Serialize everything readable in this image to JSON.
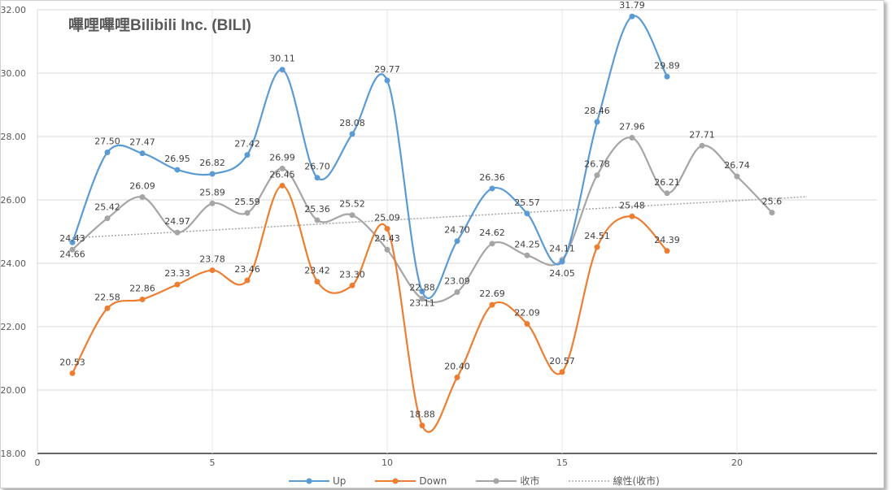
{
  "chart_data": {
    "type": "line",
    "title": "嗶哩嗶哩Bilibili Inc. (BILI)",
    "xlim": [
      0,
      24
    ],
    "ylim": [
      18,
      32
    ],
    "x_ticks": [
      0,
      5,
      10,
      15,
      20
    ],
    "y_ticks": [
      "18.00",
      "20.00",
      "22.00",
      "24.00",
      "26.00",
      "28.00",
      "30.00",
      "32.00"
    ],
    "grid": true,
    "legend": "bottom",
    "series": [
      {
        "name": "Up",
        "color": "#5B9BD5",
        "x": [
          1,
          2,
          3,
          4,
          5,
          6,
          7,
          8,
          9,
          10,
          11,
          12,
          13,
          14,
          15,
          16,
          17,
          18
        ],
        "values": [
          24.66,
          27.5,
          27.47,
          26.95,
          26.82,
          27.42,
          30.11,
          26.7,
          28.08,
          29.77,
          23.11,
          24.7,
          26.36,
          25.57,
          24.05,
          28.46,
          31.79,
          29.89
        ],
        "labels": [
          "24.66",
          "27.50",
          "27.47",
          "26.95",
          "26.82",
          "27.42",
          "30.11",
          "26.70",
          "28.08",
          "29.77",
          "23.11",
          "24.70",
          "26.36",
          "25.57",
          "24.05",
          "28.46",
          "31.79",
          "29.89"
        ]
      },
      {
        "name": "Down",
        "color": "#ED7D31",
        "x": [
          1,
          2,
          3,
          4,
          5,
          6,
          7,
          8,
          9,
          10,
          11,
          12,
          13,
          14,
          15,
          16,
          17,
          18
        ],
        "values": [
          20.53,
          22.58,
          22.86,
          23.33,
          23.78,
          23.46,
          26.45,
          23.42,
          23.3,
          25.09,
          18.88,
          20.4,
          22.69,
          22.09,
          20.57,
          24.51,
          25.48,
          24.39
        ],
        "labels": [
          "20.53",
          "22.58",
          "22.86",
          "23.33",
          "23.78",
          "23.46",
          "26.45",
          "23.42",
          "23.30",
          "25.09",
          "18.88",
          "20.40",
          "22.69",
          "22.09",
          "20.57",
          "24.51",
          "25.48",
          "24.39"
        ]
      },
      {
        "name": "收市",
        "color": "#A5A5A5",
        "x": [
          1,
          2,
          3,
          4,
          5,
          6,
          7,
          8,
          9,
          10,
          11,
          12,
          13,
          14,
          15,
          16,
          17,
          18,
          19,
          20,
          21
        ],
        "values": [
          24.43,
          25.42,
          26.09,
          24.97,
          25.89,
          25.59,
          26.99,
          25.36,
          25.52,
          24.43,
          22.88,
          23.09,
          24.62,
          24.25,
          24.11,
          26.78,
          27.96,
          26.21,
          27.71,
          26.74,
          25.6
        ],
        "labels": [
          "24.43",
          "25.42",
          "26.09",
          "24.97",
          "25.89",
          "25.59",
          "26.99",
          "25.36",
          "25.52",
          "24.43",
          "22.88",
          "23.09",
          "24.62",
          "24.25",
          "24.11",
          "26.78",
          "27.96",
          "26.21",
          "27.71",
          "26.74",
          "25.6"
        ]
      }
    ],
    "trendline": {
      "name": "線性(收市)",
      "color": "#A5A5A5",
      "x": [
        1,
        22
      ],
      "values": [
        24.8,
        26.1
      ]
    }
  }
}
